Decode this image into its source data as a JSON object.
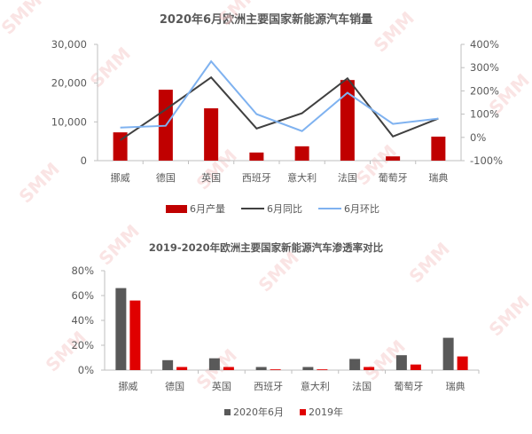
{
  "watermark": "SMM",
  "chart_data": [
    {
      "type": "bar+line",
      "title": "2020年6月欧洲主要国家新能源汽车销量",
      "categories": [
        "挪威",
        "德国",
        "英国",
        "西班牙",
        "意大利",
        "法国",
        "葡萄牙",
        "瑞典"
      ],
      "series": [
        {
          "name": "6月产量",
          "type": "bar",
          "axis": "left",
          "color": "#c00000",
          "values": [
            7300,
            18300,
            13500,
            2100,
            3700,
            20800,
            1100,
            6200
          ]
        },
        {
          "name": "6月同比",
          "type": "line",
          "axis": "right",
          "color": "#404040",
          "values": [
            -12,
            120,
            258,
            38,
            104,
            254,
            4,
            81
          ]
        },
        {
          "name": "6月环比",
          "type": "line",
          "axis": "right",
          "color": "#7fb2f0",
          "values": [
            42,
            50,
            327,
            100,
            27,
            192,
            58,
            81
          ]
        }
      ],
      "y_left": {
        "ticks": [
          "0",
          "10,000",
          "20,000",
          "30,000"
        ],
        "range": [
          0,
          30000
        ]
      },
      "y_right": {
        "ticks": [
          "-100%",
          "0%",
          "100%",
          "200%",
          "300%",
          "400%"
        ],
        "range": [
          -100,
          400
        ]
      },
      "legend_position": "bottom",
      "grid": false
    },
    {
      "type": "bar",
      "title": "2019-2020年欧洲主要国家新能源汽车渗透率对比",
      "categories": [
        "挪威",
        "德国",
        "英国",
        "西班牙",
        "意大利",
        "法国",
        "葡萄牙",
        "瑞典"
      ],
      "series": [
        {
          "name": "2020年6月",
          "color": "#595959",
          "values": [
            66,
            8,
            9.5,
            2.5,
            2.5,
            9,
            12,
            26
          ]
        },
        {
          "name": "2019年",
          "color": "#e00000",
          "values": [
            56,
            2.5,
            2.5,
            0.6,
            0.6,
            2.5,
            4.5,
            11
          ]
        }
      ],
      "y_ticks": [
        "0%",
        "20%",
        "40%",
        "60%",
        "80%"
      ],
      "ylim": [
        0,
        80
      ],
      "legend_position": "bottom",
      "grid": false
    }
  ]
}
